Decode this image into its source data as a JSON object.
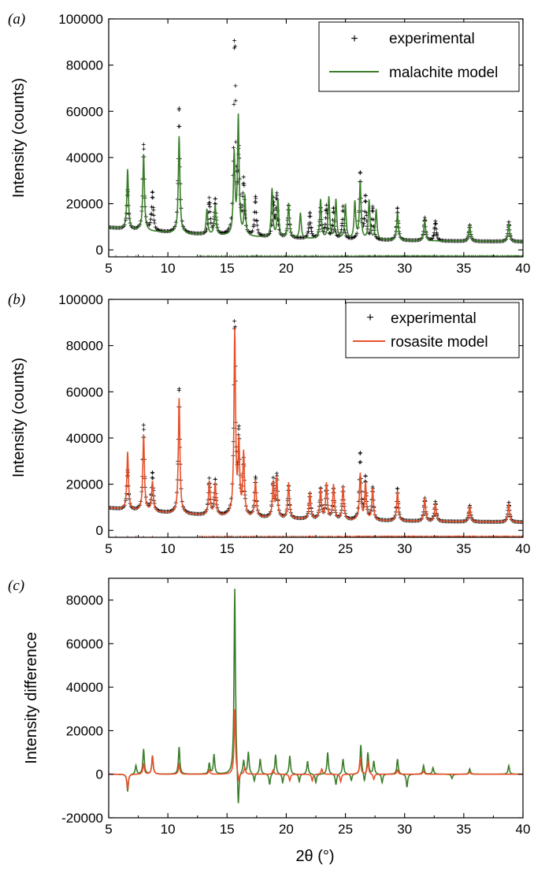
{
  "figure": {
    "xlabel": "2θ (°)"
  },
  "colors": {
    "experimental": "#000000",
    "malachite": "#3a7d2a",
    "rosasite": "#e8502a"
  },
  "chart_data": [
    {
      "panel": "(a)",
      "type": "line",
      "ylabel": "Intensity (counts)",
      "xlim": [
        5,
        40
      ],
      "ylim": [
        -3000,
        100000
      ],
      "xticks": [
        5,
        10,
        15,
        20,
        25,
        30,
        35,
        40
      ],
      "yticks": [
        0,
        20000,
        40000,
        60000,
        80000,
        100000
      ],
      "legend": {
        "position": "top-right",
        "entries": [
          "experimental",
          "malachite model"
        ]
      },
      "series": [
        {
          "name": "experimental",
          "style": "markers",
          "peaks": [
            [
              6.6,
              17000
            ],
            [
              7.95,
              37000
            ],
            [
              8.7,
              16500
            ],
            [
              10.95,
              54000
            ],
            [
              13.5,
              15500
            ],
            [
              14.0,
              15000
            ],
            [
              15.65,
              93000
            ],
            [
              16.0,
              33000
            ],
            [
              16.4,
              23000
            ],
            [
              17.4,
              17000
            ],
            [
              18.9,
              16000
            ],
            [
              19.2,
              18000
            ],
            [
              20.2,
              14000
            ],
            [
              22.0,
              11000
            ],
            [
              22.9,
              13000
            ],
            [
              23.4,
              14000
            ],
            [
              24.0,
              13000
            ],
            [
              24.8,
              14000
            ],
            [
              26.25,
              28500
            ],
            [
              26.7,
              18000
            ],
            [
              27.3,
              14000
            ],
            [
              29.4,
              14000
            ],
            [
              31.7,
              10000
            ],
            [
              32.6,
              8500
            ],
            [
              35.5,
              7000
            ],
            [
              38.8,
              8500
            ]
          ]
        },
        {
          "name": "malachite model",
          "style": "line",
          "peaks": [
            [
              6.6,
              26000
            ],
            [
              7.95,
              33000
            ],
            [
              10.95,
              42000
            ],
            [
              13.3,
              11000
            ],
            [
              14.0,
              13000
            ],
            [
              15.6,
              35000
            ],
            [
              15.95,
              51000
            ],
            [
              16.5,
              17000
            ],
            [
              18.8,
              21000
            ],
            [
              19.3,
              16000
            ],
            [
              20.2,
              15000
            ],
            [
              21.2,
              11000
            ],
            [
              22.9,
              17000
            ],
            [
              23.6,
              18000
            ],
            [
              24.2,
              17000
            ],
            [
              25.0,
              15000
            ],
            [
              25.8,
              16000
            ],
            [
              26.25,
              25000
            ],
            [
              27.0,
              17000
            ],
            [
              27.6,
              13000
            ],
            [
              29.4,
              12000
            ],
            [
              31.7,
              9000
            ],
            [
              35.5,
              7000
            ],
            [
              38.8,
              8000
            ]
          ]
        }
      ],
      "reflection_ticks": "malachite"
    },
    {
      "panel": "(b)",
      "type": "line",
      "ylabel": "Intensity (counts)",
      "xlim": [
        5,
        40
      ],
      "ylim": [
        -3000,
        100000
      ],
      "xticks": [
        5,
        10,
        15,
        20,
        25,
        30,
        35,
        40
      ],
      "yticks": [
        0,
        20000,
        40000,
        60000,
        80000,
        100000
      ],
      "legend": {
        "position": "top-right",
        "entries": [
          "experimental",
          "rosasite model"
        ]
      },
      "series": [
        {
          "name": "experimental",
          "style": "markers",
          "peaks": [
            [
              6.6,
              17000
            ],
            [
              7.95,
              37000
            ],
            [
              8.7,
              16500
            ],
            [
              10.95,
              54000
            ],
            [
              13.5,
              15500
            ],
            [
              14.0,
              15000
            ],
            [
              15.65,
              93000
            ],
            [
              16.0,
              33000
            ],
            [
              16.4,
              23000
            ],
            [
              17.4,
              17000
            ],
            [
              18.9,
              16000
            ],
            [
              19.2,
              18000
            ],
            [
              20.2,
              14000
            ],
            [
              22.0,
              11000
            ],
            [
              22.9,
              13000
            ],
            [
              23.4,
              14000
            ],
            [
              24.0,
              13000
            ],
            [
              24.8,
              14000
            ],
            [
              26.25,
              28500
            ],
            [
              26.7,
              18000
            ],
            [
              27.3,
              14000
            ],
            [
              29.4,
              14000
            ],
            [
              31.7,
              10000
            ],
            [
              32.6,
              8500
            ],
            [
              35.5,
              7000
            ],
            [
              38.8,
              8500
            ]
          ]
        },
        {
          "name": "rosasite model",
          "style": "line",
          "peaks": [
            [
              6.6,
              25000
            ],
            [
              7.95,
              33000
            ],
            [
              8.7,
              13000
            ],
            [
              10.95,
              50000
            ],
            [
              13.5,
              14500
            ],
            [
              14.0,
              14000
            ],
            [
              15.65,
              80000
            ],
            [
              16.0,
              30000
            ],
            [
              16.4,
              27000
            ],
            [
              17.4,
              16000
            ],
            [
              18.9,
              15000
            ],
            [
              19.2,
              17000
            ],
            [
              20.2,
              15500
            ],
            [
              22.0,
              11500
            ],
            [
              22.9,
              13000
            ],
            [
              23.4,
              15500
            ],
            [
              24.0,
              15000
            ],
            [
              24.8,
              14500
            ],
            [
              26.25,
              20000
            ],
            [
              26.7,
              16000
            ],
            [
              27.3,
              13500
            ],
            [
              29.4,
              13000
            ],
            [
              31.7,
              10000
            ],
            [
              32.6,
              8000
            ],
            [
              35.5,
              7000
            ],
            [
              38.8,
              8000
            ]
          ]
        }
      ],
      "reflection_ticks": "rosasite"
    },
    {
      "panel": "(c)",
      "type": "line",
      "ylabel": "Intensity difference",
      "xlim": [
        5,
        40
      ],
      "ylim": [
        -20000,
        90000
      ],
      "xticks": [
        5,
        10,
        15,
        20,
        25,
        30,
        35,
        40
      ],
      "yticks": [
        -20000,
        0,
        20000,
        40000,
        60000,
        80000
      ],
      "series": [
        {
          "name": "malachite",
          "style": "line",
          "peaks": [
            [
              6.6,
              -8000
            ],
            [
              7.3,
              4000
            ],
            [
              7.95,
              11500
            ],
            [
              8.7,
              8500
            ],
            [
              10.95,
              12500
            ],
            [
              13.5,
              5000
            ],
            [
              13.9,
              9000
            ],
            [
              15.65,
              86000
            ],
            [
              15.95,
              -18000
            ],
            [
              16.4,
              6000
            ],
            [
              16.8,
              10000
            ],
            [
              17.3,
              -3500
            ],
            [
              17.8,
              7000
            ],
            [
              18.6,
              -5000
            ],
            [
              19.1,
              9000
            ],
            [
              19.7,
              -4000
            ],
            [
              20.3,
              8500
            ],
            [
              21.1,
              -3500
            ],
            [
              21.8,
              6000
            ],
            [
              22.5,
              -4000
            ],
            [
              23.5,
              10000
            ],
            [
              24.2,
              -5000
            ],
            [
              24.8,
              7000
            ],
            [
              25.5,
              -3000
            ],
            [
              26.3,
              13500
            ],
            [
              26.6,
              -4000
            ],
            [
              26.9,
              10000
            ],
            [
              27.4,
              6000
            ],
            [
              28.1,
              -4000
            ],
            [
              29.4,
              7000
            ],
            [
              30.2,
              -6000
            ],
            [
              31.6,
              4000
            ],
            [
              32.4,
              3000
            ],
            [
              34.0,
              -2000
            ],
            [
              35.5,
              2500
            ],
            [
              38.8,
              4000
            ]
          ]
        },
        {
          "name": "rosasite",
          "style": "line",
          "peaks": [
            [
              6.6,
              -7000
            ],
            [
              7.95,
              5000
            ],
            [
              8.7,
              8500
            ],
            [
              10.95,
              4500
            ],
            [
              13.5,
              2000
            ],
            [
              15.65,
              30000
            ],
            [
              16.0,
              -4000
            ],
            [
              16.5,
              3000
            ],
            [
              18.9,
              2000
            ],
            [
              20.3,
              -3000
            ],
            [
              22.2,
              -3000
            ],
            [
              23.0,
              2500
            ],
            [
              24.6,
              -3500
            ],
            [
              26.25,
              7500
            ],
            [
              26.9,
              6000
            ],
            [
              27.4,
              -2500
            ],
            [
              29.4,
              2000
            ],
            [
              31.6,
              1500
            ],
            [
              35.5,
              1000
            ]
          ]
        }
      ]
    }
  ]
}
